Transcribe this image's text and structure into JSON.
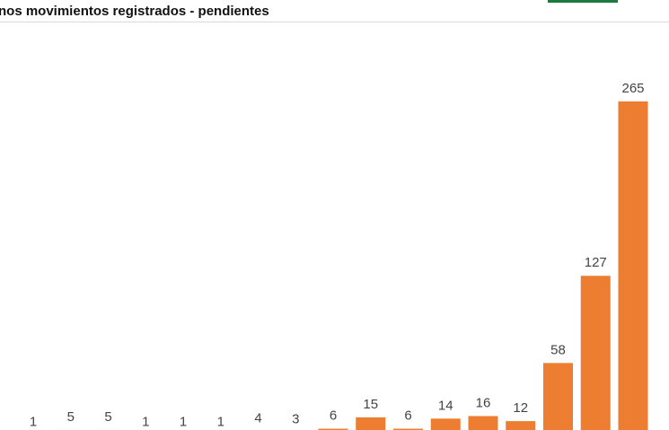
{
  "chart_data": {
    "type": "bar",
    "title": "nos movimientos registrados - pendientes",
    "values": [
      1,
      5,
      5,
      1,
      1,
      1,
      4,
      3,
      6,
      15,
      6,
      14,
      16,
      12,
      58,
      127,
      265
    ],
    "color": "#ed7d31"
  }
}
